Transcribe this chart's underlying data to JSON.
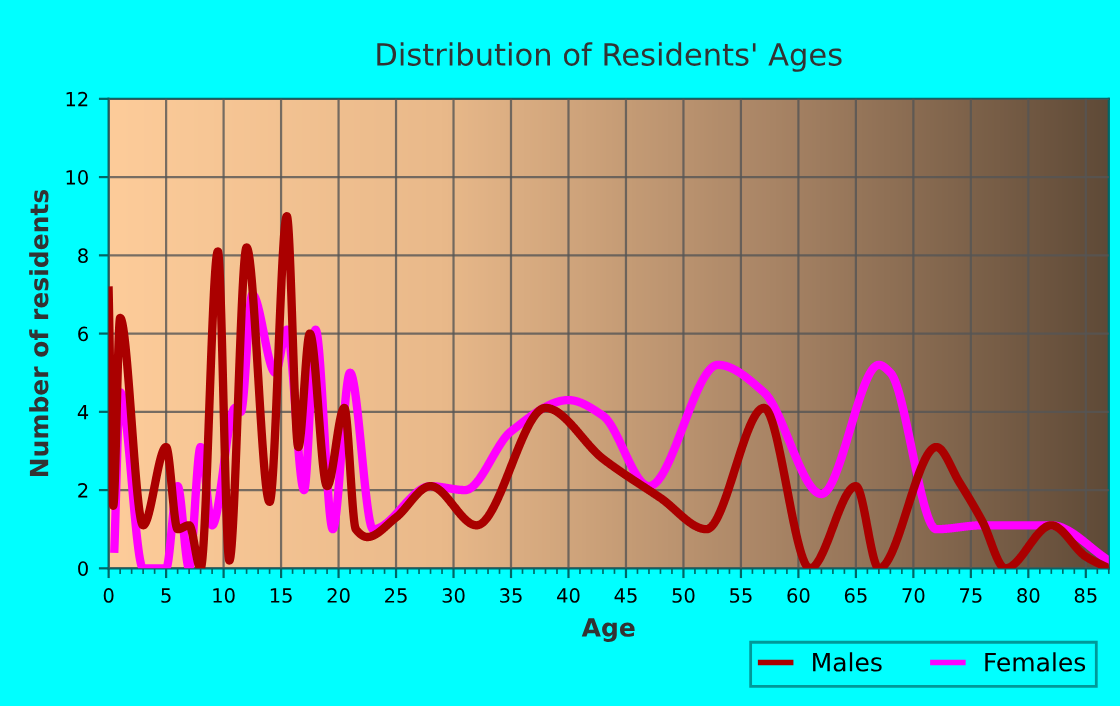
{
  "chart_data": {
    "type": "line",
    "title": "Distribution of Residents' Ages",
    "xlabel": "Age",
    "ylabel": "Number of residents",
    "xlim": [
      0,
      87
    ],
    "xticks": [
      0,
      5,
      10,
      15,
      20,
      25,
      30,
      35,
      40,
      45,
      50,
      55,
      60,
      65,
      70,
      75,
      80,
      85
    ],
    "ylim": [
      0,
      12
    ],
    "yticks": [
      0,
      2,
      4,
      6,
      8,
      10,
      12
    ],
    "grid": true,
    "legend": "bottom right",
    "marker": "none",
    "line_style": "solid",
    "series": [
      {
        "name": "Males",
        "color": "#aa0000",
        "x": [
          0,
          0.4,
          1,
          3,
          5,
          6,
          7,
          8,
          9.5,
          10.5,
          12,
          14,
          15.5,
          16.5,
          17.5,
          19,
          20.5,
          21.5,
          22.5,
          25,
          28,
          32,
          38,
          43,
          48,
          52,
          57,
          61,
          65,
          67,
          72,
          74,
          76,
          78,
          82,
          85,
          87
        ],
        "values": [
          7.1,
          1.6,
          6.4,
          1.1,
          3.1,
          1.0,
          1.1,
          0,
          8.1,
          0.2,
          8.2,
          1.7,
          9.0,
          3.1,
          6.0,
          2.1,
          4.1,
          1.0,
          0.8,
          1.3,
          2.1,
          1.1,
          4.1,
          2.8,
          1.8,
          1.0,
          4.1,
          0,
          2.1,
          0,
          3.1,
          2.2,
          1.2,
          0,
          1.1,
          0.3,
          0
        ]
      },
      {
        "name": "Females",
        "color": "#ff00ff",
        "x": [
          0.5,
          1,
          3,
          5,
          6,
          7,
          8,
          9,
          11,
          11.5,
          12.5,
          14.5,
          15.5,
          17,
          18,
          19.5,
          21,
          23,
          28,
          31,
          35,
          40,
          43,
          47,
          53,
          57,
          62,
          67,
          68,
          72,
          76,
          82,
          87
        ],
        "values": [
          0.5,
          4.5,
          0,
          0,
          2.1,
          0,
          3.1,
          1.1,
          4.1,
          4.0,
          7.0,
          5.0,
          6.1,
          2.0,
          6.1,
          1.0,
          5.0,
          1.0,
          2.1,
          2.0,
          3.5,
          4.3,
          3.9,
          2.1,
          5.2,
          4.5,
          1.9,
          5.2,
          5.0,
          1.0,
          1.1,
          1.1,
          0.2
        ]
      }
    ]
  }
}
